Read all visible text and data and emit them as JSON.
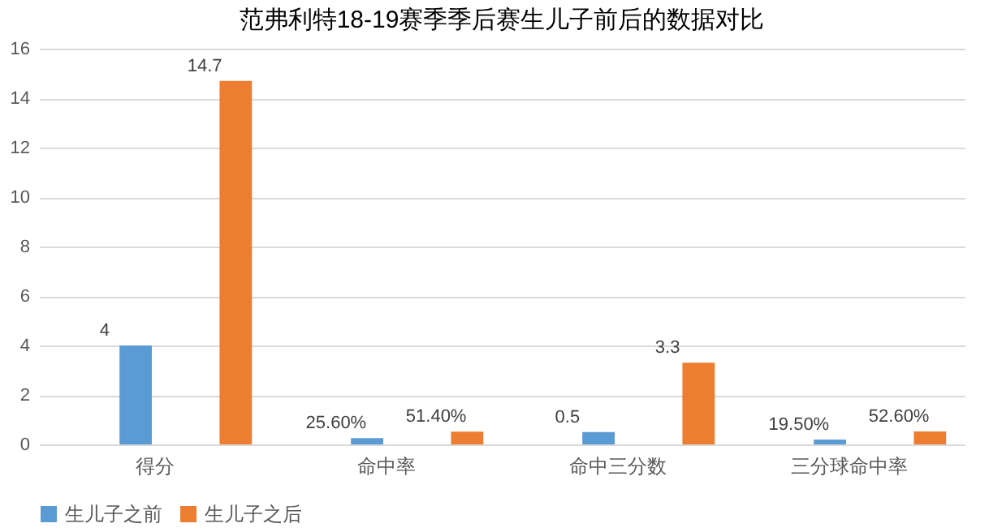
{
  "chart_data": {
    "type": "bar",
    "title": "范弗利特18-19赛季季后赛生儿子前后的数据对比",
    "categories": [
      "得分",
      "命中率",
      "命中三分数",
      "三分球命中率"
    ],
    "series": [
      {
        "name": "生儿子之前",
        "color": "#5b9bd5",
        "values": [
          4,
          0.256,
          0.5,
          0.195
        ],
        "value_labels": [
          "4",
          "25.60%",
          "0.5",
          "19.50%"
        ]
      },
      {
        "name": "生儿子之后",
        "color": "#ed7d31",
        "values": [
          14.7,
          0.514,
          3.3,
          0.526
        ],
        "value_labels": [
          "14.7",
          "51.40%",
          "3.3",
          "52.60%"
        ]
      }
    ],
    "ylim": [
      0,
      16
    ],
    "yticks": [
      0,
      2,
      4,
      6,
      8,
      10,
      12,
      14,
      16
    ],
    "grid": "y",
    "legend": "bottom"
  }
}
